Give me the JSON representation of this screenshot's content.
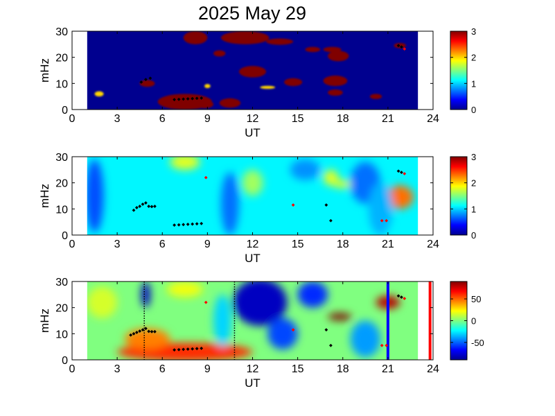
{
  "figure": {
    "title": "2025 May 29"
  },
  "colormap": [
    "#00008f",
    "#0000ff",
    "#0080ff",
    "#00ffff",
    "#80ff80",
    "#ffff00",
    "#ff8000",
    "#ff0000",
    "#800000"
  ],
  "chart_data": [
    {
      "type": "heatmap",
      "id": "panel-1",
      "xlabel": "UT",
      "ylabel": "mHz",
      "xlim": [
        0,
        24
      ],
      "ylim": [
        0,
        30
      ],
      "xticks": [
        0,
        3,
        6,
        9,
        12,
        15,
        18,
        21,
        24
      ],
      "yticks": [
        0,
        10,
        20,
        30
      ],
      "data_x_range": [
        1,
        23
      ],
      "colorbar": {
        "range": [
          0,
          3
        ],
        "ticks": [
          0,
          1,
          2,
          3
        ]
      },
      "background_value": 0,
      "blobs": [
        {
          "x": 7.5,
          "y": 3,
          "rx": 1.8,
          "ry": 3,
          "value": 3
        },
        {
          "x": 8.8,
          "y": 2,
          "rx": 0.6,
          "ry": 1.5,
          "value": 3
        },
        {
          "x": 10.5,
          "y": 2.5,
          "rx": 0.7,
          "ry": 1.8,
          "value": 3
        },
        {
          "x": 8.2,
          "y": 27.5,
          "rx": 0.8,
          "ry": 2.5,
          "value": 3
        },
        {
          "x": 11.5,
          "y": 27.5,
          "rx": 1.6,
          "ry": 2.5,
          "value": 3
        },
        {
          "x": 13.8,
          "y": 26,
          "rx": 0.9,
          "ry": 1.2,
          "value": 3
        },
        {
          "x": 12.0,
          "y": 14.5,
          "rx": 0.9,
          "ry": 2.2,
          "value": 3
        },
        {
          "x": 17.5,
          "y": 11,
          "rx": 0.8,
          "ry": 2.0,
          "value": 3
        },
        {
          "x": 14.7,
          "y": 10.5,
          "rx": 0.6,
          "ry": 1.5,
          "value": 3
        },
        {
          "x": 17.7,
          "y": 20.5,
          "rx": 0.7,
          "ry": 2.0,
          "value": 3
        },
        {
          "x": 17.3,
          "y": 23,
          "rx": 0.6,
          "ry": 1.0,
          "value": 3
        },
        {
          "x": 17.5,
          "y": 6.5,
          "rx": 0.5,
          "ry": 1.2,
          "value": 3
        },
        {
          "x": 20.2,
          "y": 5,
          "rx": 0.4,
          "ry": 1.0,
          "value": 3
        },
        {
          "x": 9.8,
          "y": 21.5,
          "rx": 0.4,
          "ry": 1.2,
          "value": 3
        },
        {
          "x": 5.0,
          "y": 10,
          "rx": 0.5,
          "ry": 1.3,
          "value": 3
        },
        {
          "x": 21.8,
          "y": 24.5,
          "rx": 0.4,
          "ry": 1.0,
          "value": 3
        },
        {
          "x": 16.0,
          "y": 23,
          "rx": 0.5,
          "ry": 1.0,
          "value": 3
        },
        {
          "x": 1.8,
          "y": 6,
          "rx": 0.3,
          "ry": 1.0,
          "value": 2
        },
        {
          "x": 9.0,
          "y": 9,
          "rx": 0.2,
          "ry": 0.8,
          "value": 2
        },
        {
          "x": 13.0,
          "y": 8.5,
          "rx": 0.5,
          "ry": 0.6,
          "value": 2
        }
      ],
      "markers": {
        "black": [
          [
            6.8,
            3.8
          ],
          [
            7.1,
            3.9
          ],
          [
            7.4,
            4.0
          ],
          [
            7.7,
            4.1
          ],
          [
            8.0,
            4.2
          ],
          [
            8.3,
            4.3
          ],
          [
            8.6,
            4.4
          ],
          [
            4.6,
            10.5
          ],
          [
            4.9,
            11.5
          ],
          [
            5.2,
            12.0
          ],
          [
            21.7,
            24.5
          ],
          [
            21.9,
            24.0
          ]
        ],
        "red": [
          [
            22.1,
            23.2
          ]
        ]
      },
      "vertical_lines": []
    },
    {
      "type": "heatmap",
      "id": "panel-2",
      "xlabel": "UT",
      "ylabel": "mHz",
      "xlim": [
        0,
        24
      ],
      "ylim": [
        0,
        30
      ],
      "xticks": [
        0,
        3,
        6,
        9,
        12,
        15,
        18,
        21,
        24
      ],
      "yticks": [
        0,
        10,
        20,
        30
      ],
      "data_x_range": [
        1,
        23
      ],
      "colorbar": {
        "range": [
          0,
          3
        ],
        "ticks": [
          0,
          1,
          2,
          3
        ]
      },
      "background_value": 1.1,
      "blobs": [
        {
          "x": 21.8,
          "y": 14.5,
          "rx": 0.7,
          "ry": 3.5,
          "value": 3
        },
        {
          "x": 21.8,
          "y": 14.5,
          "rx": 0.9,
          "ry": 4.5,
          "value": 2.3
        },
        {
          "x": 7.5,
          "y": 28,
          "rx": 1.0,
          "ry": 3,
          "value": 1.8
        },
        {
          "x": 17.2,
          "y": 22,
          "rx": 0.5,
          "ry": 3,
          "value": 1.8
        },
        {
          "x": 18.0,
          "y": 19.5,
          "rx": 0.7,
          "ry": 1.5,
          "value": 1.8
        },
        {
          "x": 12.0,
          "y": 20,
          "rx": 0.7,
          "ry": 5,
          "value": 1.6
        },
        {
          "x": 1.5,
          "y": 15,
          "rx": 0.6,
          "ry": 14,
          "value": 0.6
        },
        {
          "x": 10.5,
          "y": 12,
          "rx": 0.6,
          "ry": 12,
          "value": 0.7
        },
        {
          "x": 19.5,
          "y": 20,
          "rx": 1.0,
          "ry": 8,
          "value": 0.7
        },
        {
          "x": 15.5,
          "y": 25,
          "rx": 1.0,
          "ry": 4,
          "value": 0.8
        },
        {
          "x": 20.5,
          "y": 10,
          "rx": 0.8,
          "ry": 10,
          "value": 0.9
        }
      ],
      "markers": {
        "black": [
          [
            4.1,
            9.5
          ],
          [
            4.3,
            10.5
          ],
          [
            4.5,
            11.0
          ],
          [
            4.7,
            11.8
          ],
          [
            4.9,
            12.3
          ],
          [
            5.1,
            11.0
          ],
          [
            5.3,
            10.9
          ],
          [
            5.5,
            11.0
          ],
          [
            6.8,
            3.8
          ],
          [
            7.1,
            3.9
          ],
          [
            7.4,
            4.0
          ],
          [
            7.7,
            4.1
          ],
          [
            8.0,
            4.2
          ],
          [
            8.3,
            4.3
          ],
          [
            8.6,
            4.4
          ],
          [
            16.9,
            11.5
          ],
          [
            17.2,
            5.5
          ],
          [
            21.7,
            24.5
          ],
          [
            21.9,
            24.0
          ]
        ],
        "red": [
          [
            8.9,
            22.0
          ],
          [
            14.7,
            11.5
          ],
          [
            20.6,
            5.5
          ],
          [
            20.9,
            5.5
          ],
          [
            22.1,
            23.5
          ]
        ]
      },
      "vertical_lines": []
    },
    {
      "type": "heatmap",
      "id": "panel-3",
      "xlabel": "UT",
      "ylabel": "mHz",
      "xlim": [
        0,
        24
      ],
      "ylim": [
        0,
        30
      ],
      "xticks": [
        0,
        3,
        6,
        9,
        12,
        15,
        18,
        21,
        24
      ],
      "yticks": [
        0,
        10,
        20,
        30
      ],
      "data_x_range": [
        1,
        23
      ],
      "colorbar": {
        "range": [
          -90,
          90
        ],
        "ticks": [
          -50,
          0,
          50
        ]
      },
      "background_value": 0,
      "blobs": [
        {
          "x": 7.5,
          "y": 3,
          "rx": 4.5,
          "ry": 3.5,
          "value": 60
        },
        {
          "x": 5.0,
          "y": 8,
          "rx": 1.5,
          "ry": 4,
          "value": 45
        },
        {
          "x": 17.8,
          "y": 16.5,
          "rx": 0.8,
          "ry": 1.4,
          "value": 90
        },
        {
          "x": 21.0,
          "y": 22,
          "rx": 0.8,
          "ry": 2.5,
          "value": 80
        },
        {
          "x": 12.5,
          "y": 22,
          "rx": 1.8,
          "ry": 9,
          "value": -80
        },
        {
          "x": 14.0,
          "y": 10,
          "rx": 1.0,
          "ry": 6,
          "value": -55
        },
        {
          "x": 16.0,
          "y": 25,
          "rx": 1.0,
          "ry": 5,
          "value": -60
        },
        {
          "x": 19.5,
          "y": 8,
          "rx": 1.0,
          "ry": 7,
          "value": -40
        },
        {
          "x": 4.9,
          "y": 25,
          "rx": 0.3,
          "ry": 5,
          "value": -80
        },
        {
          "x": 7.5,
          "y": 27,
          "rx": 1.2,
          "ry": 3,
          "value": 20
        },
        {
          "x": 2.0,
          "y": 22,
          "rx": 1.0,
          "ry": 6,
          "value": 15
        },
        {
          "x": 10.0,
          "y": 15,
          "rx": 0.6,
          "ry": 10,
          "value": -30
        }
      ],
      "markers": {
        "black": [
          [
            3.9,
            9.5
          ],
          [
            4.1,
            10.0
          ],
          [
            4.3,
            10.5
          ],
          [
            4.5,
            11.0
          ],
          [
            4.7,
            11.5
          ],
          [
            4.9,
            12.0
          ],
          [
            5.1,
            10.9
          ],
          [
            5.3,
            10.8
          ],
          [
            5.5,
            10.8
          ],
          [
            6.8,
            3.8
          ],
          [
            7.1,
            3.9
          ],
          [
            7.4,
            4.0
          ],
          [
            7.7,
            4.1
          ],
          [
            8.0,
            4.2
          ],
          [
            8.3,
            4.3
          ],
          [
            8.6,
            4.4
          ],
          [
            16.9,
            11.5
          ],
          [
            17.2,
            5.5
          ],
          [
            21.7,
            24.5
          ],
          [
            21.9,
            24.0
          ]
        ],
        "red": [
          [
            8.9,
            22.0
          ],
          [
            14.7,
            11.5
          ],
          [
            20.6,
            5.5
          ],
          [
            20.9,
            5.5
          ],
          [
            22.1,
            23.5
          ]
        ]
      },
      "vertical_lines": [
        {
          "x": 4.8,
          "style": "dotted",
          "color": "#000000"
        },
        {
          "x": 10.8,
          "style": "dotted",
          "color": "#000000"
        },
        {
          "x": 21.0,
          "style": "solid",
          "color": "#0000ff"
        },
        {
          "x": 23.8,
          "style": "solid",
          "color": "#ff0000"
        }
      ]
    }
  ]
}
